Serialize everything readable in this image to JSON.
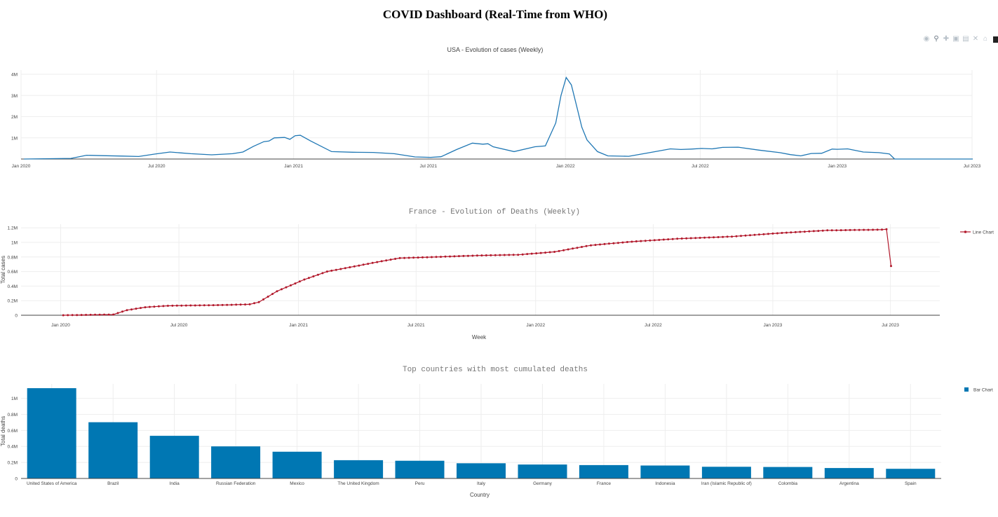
{
  "page": {
    "title": "COVID Dashboard (Real-Time from WHO)"
  },
  "modebar": {
    "icons": [
      "camera-icon",
      "zoom-icon",
      "pan-icon",
      "zoom-in-icon",
      "zoom-out-icon",
      "autoscale-icon",
      "reset-axes-icon",
      "plotly-logo-icon"
    ]
  },
  "chart_data": [
    {
      "type": "line",
      "title": "USA - Evolution of cases (Weekly)",
      "xlabel": "",
      "ylabel": "",
      "x_ticks": [
        "Jan 2020",
        "Jul 2020",
        "Jan 2021",
        "Jul 2021",
        "Jan 2022",
        "Jul 2022",
        "Jan 2023",
        "Jul 2023"
      ],
      "y_ticks": [
        "4M",
        "3M",
        "2M",
        "1M"
      ],
      "xlim": [
        "2020-01-01",
        "2023-07-01"
      ],
      "ylim": [
        0,
        4200000
      ],
      "grid": true,
      "color": "#1f77b4",
      "series": [
        {
          "x": [
            "2020-01-05",
            "2020-03-08",
            "2020-03-29",
            "2020-04-19",
            "2020-05-17",
            "2020-06-07",
            "2020-06-28",
            "2020-07-19",
            "2020-08-16",
            "2020-09-13",
            "2020-10-11",
            "2020-10-25",
            "2020-11-08",
            "2020-11-22",
            "2020-11-29",
            "2020-12-06",
            "2020-12-20",
            "2020-12-27",
            "2021-01-03",
            "2021-01-10",
            "2021-01-24",
            "2021-02-21",
            "2021-03-21",
            "2021-04-18",
            "2021-05-16",
            "2021-06-13",
            "2021-07-04",
            "2021-07-18",
            "2021-08-08",
            "2021-08-29",
            "2021-09-12",
            "2021-09-19",
            "2021-09-26",
            "2021-10-24",
            "2021-11-21",
            "2021-12-05",
            "2021-12-19",
            "2021-12-26",
            "2022-01-02",
            "2022-01-09",
            "2022-01-16",
            "2022-01-23",
            "2022-01-30",
            "2022-02-13",
            "2022-02-27",
            "2022-03-27",
            "2022-04-24",
            "2022-05-22",
            "2022-06-05",
            "2022-06-19",
            "2022-07-03",
            "2022-07-17",
            "2022-07-31",
            "2022-08-21",
            "2022-09-18",
            "2022-10-16",
            "2022-10-30",
            "2022-11-13",
            "2022-11-27",
            "2022-12-11",
            "2022-12-25",
            "2023-01-01",
            "2023-01-15",
            "2023-02-05",
            "2023-02-26",
            "2023-03-12",
            "2023-03-19",
            "2023-04-23",
            "2023-06-04",
            "2023-07-02"
          ],
          "y": [
            0,
            30000,
            180000,
            160000,
            140000,
            120000,
            230000,
            330000,
            250000,
            200000,
            250000,
            330000,
            600000,
            820000,
            850000,
            1000000,
            1020000,
            930000,
            1100000,
            1120000,
            850000,
            350000,
            320000,
            310000,
            250000,
            100000,
            80000,
            110000,
            450000,
            750000,
            700000,
            720000,
            580000,
            350000,
            580000,
            620000,
            1700000,
            3000000,
            3850000,
            3500000,
            2500000,
            1500000,
            900000,
            350000,
            150000,
            130000,
            300000,
            480000,
            450000,
            470000,
            500000,
            480000,
            550000,
            560000,
            420000,
            300000,
            210000,
            150000,
            260000,
            270000,
            470000,
            460000,
            480000,
            330000,
            300000,
            240000,
            0,
            0,
            0,
            0
          ]
        }
      ]
    },
    {
      "type": "line",
      "title": "France - Evolution of Deaths (Weekly)",
      "xlabel": "Week",
      "ylabel": "Total cases",
      "x_ticks": [
        "Jan 2020",
        "Jul 2020",
        "Jan 2021",
        "Jul 2021",
        "Jan 2022",
        "Jul 2022",
        "Jan 2023",
        "Jul 2023"
      ],
      "y_ticks": [
        "0",
        "0.2M",
        "0.4M",
        "0.6M",
        "0.8M",
        "1M",
        "1.2M"
      ],
      "xlim": [
        "2019-11-01",
        "2023-09-15"
      ],
      "ylim": [
        0,
        1250000
      ],
      "grid": true,
      "legend": {
        "label": "Line Chart",
        "placement": "top-right"
      },
      "color": "#b2182b",
      "markers": true,
      "series": [
        {
          "name": "Line Chart",
          "x": [
            "2020-01-05",
            "2020-03-22",
            "2020-04-12",
            "2020-05-10",
            "2020-06-14",
            "2020-07-26",
            "2020-09-06",
            "2020-10-18",
            "2020-11-01",
            "2020-11-29",
            "2021-01-10",
            "2021-02-14",
            "2021-03-28",
            "2021-05-02",
            "2021-06-06",
            "2021-08-01",
            "2021-10-03",
            "2021-12-05",
            "2022-01-30",
            "2022-03-27",
            "2022-05-29",
            "2022-08-07",
            "2022-10-30",
            "2023-01-15",
            "2023-03-26",
            "2023-06-18",
            "2023-06-25",
            "2023-07-02"
          ],
          "y": [
            0,
            10000,
            70000,
            110000,
            130000,
            135000,
            140000,
            150000,
            180000,
            330000,
            490000,
            600000,
            670000,
            730000,
            785000,
            800000,
            820000,
            830000,
            870000,
            960000,
            1010000,
            1050000,
            1080000,
            1130000,
            1165000,
            1175000,
            1180000,
            675000
          ]
        }
      ]
    },
    {
      "type": "bar",
      "title": "Top countries with most cumulated deaths",
      "xlabel": "Country",
      "ylabel": "Total deaths",
      "y_ticks": [
        "0",
        "0.2M",
        "0.4M",
        "0.6M",
        "0.8M",
        "1M"
      ],
      "ylim": [
        0,
        1180000
      ],
      "grid": true,
      "legend": {
        "label": "Bar Chart",
        "placement": "top-right"
      },
      "color": "#0077b3",
      "categories": [
        "United States of America",
        "Brazil",
        "India",
        "Russian Federation",
        "Mexico",
        "The United Kingdom",
        "Peru",
        "Italy",
        "Germany",
        "France",
        "Indonesia",
        "Iran (Islamic Republic of)",
        "Colombia",
        "Argentina",
        "Spain"
      ],
      "series": [
        {
          "name": "Bar Chart",
          "values": [
            1127000,
            702000,
            532000,
            400000,
            334000,
            228000,
            221000,
            190000,
            174000,
            167000,
            162000,
            146000,
            143000,
            130000,
            121000
          ]
        }
      ]
    }
  ]
}
